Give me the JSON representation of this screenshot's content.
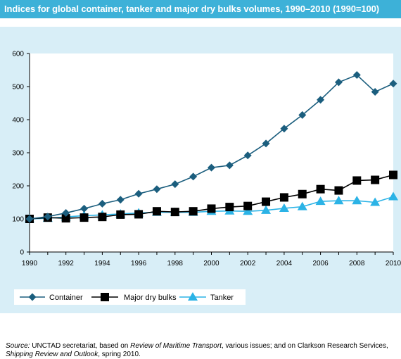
{
  "title": "Indices for global container, tanker and major dry bulks volumes, 1990–2010  (1990=100)",
  "colors": {
    "title_bar": "#3db1d8",
    "panel": "#d8eef7",
    "container": "#1b5e7e",
    "dry_bulks": "#000000",
    "tanker": "#2bb3e6"
  },
  "source": {
    "label": "Source:",
    "text1": " UNCTAD secretariat, based on ",
    "italic1": "Review of Maritime Transport",
    "text2": ", various issues; and on Clarkson Research Services, ",
    "italic2": "Shipping Review and Outlook",
    "text3": ", spring 2010."
  },
  "chart_data": {
    "type": "line",
    "x": [
      1990,
      1991,
      1992,
      1993,
      1994,
      1995,
      1996,
      1997,
      1998,
      1999,
      2000,
      2001,
      2002,
      2003,
      2004,
      2005,
      2006,
      2007,
      2008,
      2009,
      2010
    ],
    "xticks": [
      "1990",
      "1992",
      "1994",
      "1996",
      "1998",
      "2000",
      "2002",
      "2004",
      "2006",
      "2008",
      "2010"
    ],
    "xlim": [
      1990,
      2010
    ],
    "ylim": [
      0,
      600
    ],
    "yticks": [
      "0",
      "100",
      "200",
      "300",
      "400",
      "500",
      "600"
    ],
    "grid": false,
    "legend_position": "bottom-left",
    "series": [
      {
        "name": "Container",
        "marker": "diamond",
        "color": "#1b5e7e",
        "values": [
          100,
          107,
          118,
          131,
          146,
          158,
          176,
          190,
          205,
          228,
          255,
          262,
          292,
          328,
          373,
          414,
          460,
          513,
          535,
          484,
          509
        ]
      },
      {
        "name": "Major dry bulks",
        "marker": "square",
        "color": "#000000",
        "values": [
          100,
          104,
          102,
          104,
          106,
          113,
          114,
          123,
          121,
          123,
          131,
          136,
          139,
          152,
          165,
          175,
          190,
          186,
          216,
          218,
          233
        ]
      },
      {
        "name": "Tanker",
        "marker": "triangle",
        "color": "#2bb3e6",
        "values": [
          100,
          102,
          106,
          110,
          112,
          115,
          118,
          120,
          120,
          120,
          123,
          124,
          123,
          126,
          132,
          137,
          153,
          155,
          155,
          150,
          167
        ]
      }
    ]
  }
}
